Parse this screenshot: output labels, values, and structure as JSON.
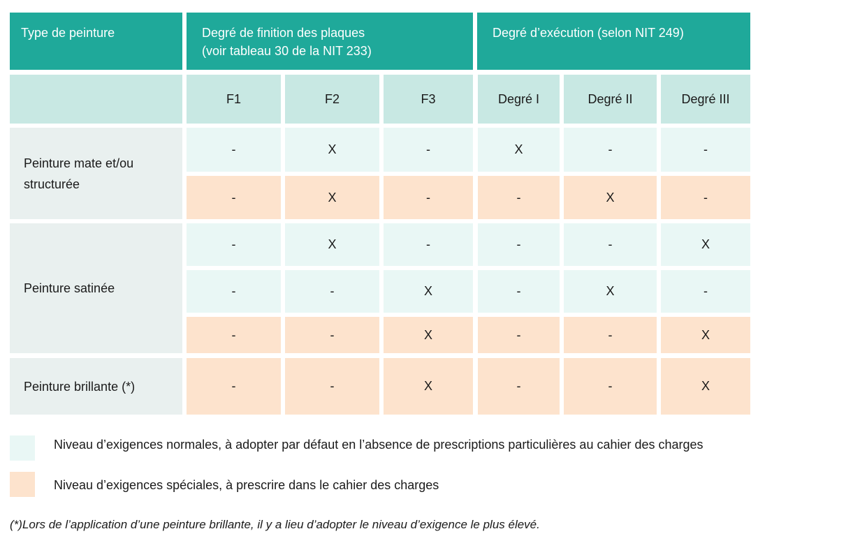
{
  "header": {
    "col_type": "Type de peinture",
    "col_finish_line1": "Degré de finition des plaques",
    "col_finish_line2": "(voir tableau 30 de la NIT 233)",
    "col_exec": "Degré d’exécution (selon NIT 249)"
  },
  "subheaders": [
    "F1",
    "F2",
    "F3",
    "Degré I",
    "Degré II",
    "Degré III"
  ],
  "groups": [
    {
      "label_line1": "Peinture mate et/ou",
      "label_line2": "structurée"
    },
    {
      "label_line1": "Peinture satinée",
      "label_line2": ""
    },
    {
      "label_line1": "Peinture brillante (*)",
      "label_line2": ""
    }
  ],
  "rows": [
    {
      "level": "normal",
      "values": [
        "-",
        "X",
        "-",
        "X",
        "-",
        "-"
      ]
    },
    {
      "level": "special",
      "values": [
        "-",
        "X",
        "-",
        "-",
        "X",
        "-"
      ]
    },
    {
      "level": "normal",
      "values": [
        "-",
        "X",
        "-",
        "-",
        "-",
        "X"
      ]
    },
    {
      "level": "normal",
      "values": [
        "-",
        "-",
        "X",
        "-",
        "X",
        "-"
      ]
    },
    {
      "level": "special",
      "values": [
        "-",
        "-",
        "X",
        "-",
        "-",
        "X"
      ]
    },
    {
      "level": "special",
      "values": [
        "-",
        "-",
        "X",
        "-",
        "-",
        "X"
      ]
    }
  ],
  "legend": {
    "normal": "Niveau d’exigences normales, à adopter par défaut en l’absence de prescriptions particulières au cahier des charges",
    "special": "Niveau d’exigences spéciales, à prescrire dans le cahier des charges"
  },
  "footnote": "(*)Lors de l’application d’une peinture brillante, il y a lieu d’adopter le niveau d’exigence le plus élevé.",
  "colors": {
    "header": "#1fa99a",
    "subheader": "#c8e8e3",
    "normal": "#e9f7f5",
    "special": "#fde3cd",
    "label": "#e9f0ef"
  }
}
